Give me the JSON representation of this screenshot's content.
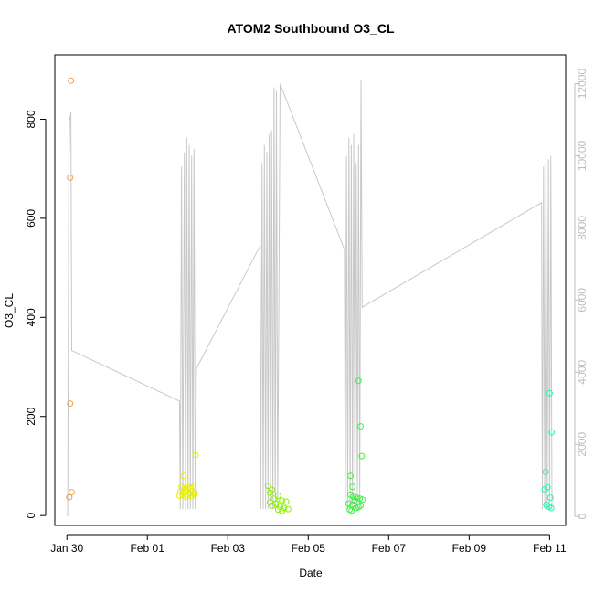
{
  "chart_data": {
    "type": "scatter",
    "title": "ATOM2 Southbound O3_CL",
    "xlabel": "Date",
    "ylabel": "O3_CL",
    "x_unit": "days",
    "x_tick_labels": [
      "Jan 30",
      "Feb 01",
      "Feb 03",
      "Feb 05",
      "Feb 07",
      "Feb 09",
      "Feb 11"
    ],
    "x_tick_values": [
      0,
      2,
      4,
      6,
      8,
      10,
      12
    ],
    "xlim": [
      -0.3,
      12.4
    ],
    "ylim": [
      -20,
      930
    ],
    "y_ticks": [
      0,
      200,
      400,
      600,
      800
    ],
    "y2_ticks": [
      0,
      2000,
      4000,
      6000,
      8000,
      10000,
      12000
    ],
    "y2lim": [
      -250,
      12800
    ],
    "grid": false,
    "legend": "none",
    "colors": {
      "axis": "#000000",
      "line": "#c8c8c8",
      "right_axis": "#bebebe"
    },
    "points": [
      {
        "x": 0.1,
        "y": 878,
        "color": "#f0a050"
      },
      {
        "x": 0.08,
        "y": 682,
        "color": "#f0a050"
      },
      {
        "x": 0.08,
        "y": 226,
        "color": "#f0a050"
      },
      {
        "x": 0.12,
        "y": 47,
        "color": "#f0a050"
      },
      {
        "x": 0.06,
        "y": 37,
        "color": "#f0a050"
      },
      {
        "x": 3.2,
        "y": 122,
        "color": "#e8f000"
      },
      {
        "x": 2.9,
        "y": 80,
        "color": "#e8f000"
      },
      {
        "x": 2.85,
        "y": 58,
        "color": "#e8f000"
      },
      {
        "x": 2.92,
        "y": 55,
        "color": "#e8f000"
      },
      {
        "x": 3.0,
        "y": 57,
        "color": "#e8f000"
      },
      {
        "x": 3.08,
        "y": 54,
        "color": "#e8f000"
      },
      {
        "x": 3.15,
        "y": 58,
        "color": "#e8f000"
      },
      {
        "x": 2.82,
        "y": 48,
        "color": "#e8f000"
      },
      {
        "x": 2.9,
        "y": 46,
        "color": "#e8f000"
      },
      {
        "x": 2.97,
        "y": 50,
        "color": "#e8f000"
      },
      {
        "x": 3.05,
        "y": 45,
        "color": "#e8f000"
      },
      {
        "x": 3.12,
        "y": 49,
        "color": "#e8f000"
      },
      {
        "x": 3.18,
        "y": 46,
        "color": "#e8f000"
      },
      {
        "x": 2.8,
        "y": 40,
        "color": "#e8f000"
      },
      {
        "x": 2.88,
        "y": 42,
        "color": "#e8f000"
      },
      {
        "x": 2.95,
        "y": 38,
        "color": "#e8f000"
      },
      {
        "x": 3.02,
        "y": 41,
        "color": "#e8f000"
      },
      {
        "x": 3.1,
        "y": 39,
        "color": "#e8f000"
      },
      {
        "x": 3.17,
        "y": 43,
        "color": "#e8f000"
      },
      {
        "x": 5.0,
        "y": 60,
        "color": "#88f000"
      },
      {
        "x": 5.1,
        "y": 52,
        "color": "#88f000"
      },
      {
        "x": 5.05,
        "y": 46,
        "color": "#88f000"
      },
      {
        "x": 5.25,
        "y": 40,
        "color": "#88f000"
      },
      {
        "x": 5.15,
        "y": 34,
        "color": "#88f000"
      },
      {
        "x": 5.35,
        "y": 30,
        "color": "#88f000"
      },
      {
        "x": 5.05,
        "y": 27,
        "color": "#88f000"
      },
      {
        "x": 5.2,
        "y": 24,
        "color": "#88f000"
      },
      {
        "x": 5.1,
        "y": 20,
        "color": "#88f000"
      },
      {
        "x": 5.3,
        "y": 18,
        "color": "#88f000"
      },
      {
        "x": 5.4,
        "y": 15,
        "color": "#88f000"
      },
      {
        "x": 5.25,
        "y": 12,
        "color": "#88f000"
      },
      {
        "x": 5.5,
        "y": 13,
        "color": "#88f000"
      },
      {
        "x": 5.35,
        "y": 9,
        "color": "#88f000"
      },
      {
        "x": 5.45,
        "y": 28,
        "color": "#88f000"
      },
      {
        "x": 7.25,
        "y": 272,
        "color": "#40f040"
      },
      {
        "x": 7.3,
        "y": 180,
        "color": "#40f040"
      },
      {
        "x": 7.33,
        "y": 120,
        "color": "#40f040"
      },
      {
        "x": 7.05,
        "y": 80,
        "color": "#40f040"
      },
      {
        "x": 7.1,
        "y": 58,
        "color": "#40f040"
      },
      {
        "x": 7.05,
        "y": 42,
        "color": "#40f040"
      },
      {
        "x": 7.12,
        "y": 38,
        "color": "#40f040"
      },
      {
        "x": 7.2,
        "y": 36,
        "color": "#40f040"
      },
      {
        "x": 7.28,
        "y": 34,
        "color": "#40f040"
      },
      {
        "x": 7.35,
        "y": 32,
        "color": "#40f040"
      },
      {
        "x": 7.15,
        "y": 30,
        "color": "#40f040"
      },
      {
        "x": 7.22,
        "y": 28,
        "color": "#40f040"
      },
      {
        "x": 7.0,
        "y": 24,
        "color": "#40f040"
      },
      {
        "x": 7.1,
        "y": 22,
        "color": "#40f040"
      },
      {
        "x": 7.3,
        "y": 20,
        "color": "#40f040"
      },
      {
        "x": 7.25,
        "y": 17,
        "color": "#40f040"
      },
      {
        "x": 7.18,
        "y": 15,
        "color": "#40f040"
      },
      {
        "x": 7.03,
        "y": 12,
        "color": "#40f040"
      },
      {
        "x": 7.08,
        "y": 10,
        "color": "#40f040"
      },
      {
        "x": 12.0,
        "y": 247,
        "color": "#30f0b0"
      },
      {
        "x": 12.05,
        "y": 168,
        "color": "#30f0b0"
      },
      {
        "x": 11.9,
        "y": 88,
        "color": "#30f0b0"
      },
      {
        "x": 11.95,
        "y": 57,
        "color": "#30f0b0"
      },
      {
        "x": 11.88,
        "y": 53,
        "color": "#30f0b0"
      },
      {
        "x": 12.02,
        "y": 36,
        "color": "#30f0b0"
      },
      {
        "x": 11.92,
        "y": 22,
        "color": "#30f0b0"
      },
      {
        "x": 11.98,
        "y": 18,
        "color": "#30f0b0"
      },
      {
        "x": 12.04,
        "y": 15,
        "color": "#30f0b0"
      }
    ],
    "line_series": [
      [
        0.02,
        0
      ],
      [
        0.05,
        9800
      ],
      [
        0.07,
        11000
      ],
      [
        0.1,
        11200
      ],
      [
        0.12,
        4600
      ],
      [
        2.8,
        3200
      ],
      [
        2.82,
        200
      ],
      [
        2.85,
        9700
      ],
      [
        2.88,
        200
      ],
      [
        2.92,
        10100
      ],
      [
        2.95,
        200
      ],
      [
        2.98,
        10500
      ],
      [
        3.01,
        200
      ],
      [
        3.04,
        10300
      ],
      [
        3.07,
        200
      ],
      [
        3.1,
        10000
      ],
      [
        3.13,
        200
      ],
      [
        3.16,
        10200
      ],
      [
        3.19,
        200
      ],
      [
        3.22,
        4100
      ],
      [
        4.8,
        7500
      ],
      [
        4.82,
        200
      ],
      [
        4.85,
        9800
      ],
      [
        4.88,
        200
      ],
      [
        4.91,
        10300
      ],
      [
        4.94,
        200
      ],
      [
        4.97,
        10100
      ],
      [
        5.0,
        200
      ],
      [
        5.03,
        10600
      ],
      [
        5.06,
        200
      ],
      [
        5.09,
        10700
      ],
      [
        5.12,
        200
      ],
      [
        5.15,
        11900
      ],
      [
        5.18,
        200
      ],
      [
        5.21,
        11800
      ],
      [
        5.24,
        200
      ],
      [
        5.3,
        12000
      ],
      [
        6.9,
        7400
      ],
      [
        6.92,
        200
      ],
      [
        6.95,
        10000
      ],
      [
        6.98,
        200
      ],
      [
        7.01,
        10500
      ],
      [
        7.04,
        200
      ],
      [
        7.07,
        10300
      ],
      [
        7.1,
        200
      ],
      [
        7.13,
        10600
      ],
      [
        7.16,
        200
      ],
      [
        7.19,
        9800
      ],
      [
        7.22,
        200
      ],
      [
        7.25,
        10300
      ],
      [
        7.28,
        200
      ],
      [
        7.31,
        12100
      ],
      [
        7.34,
        5800
      ],
      [
        11.8,
        8700
      ],
      [
        11.82,
        200
      ],
      [
        11.85,
        9700
      ],
      [
        11.88,
        200
      ],
      [
        11.91,
        9800
      ],
      [
        11.94,
        200
      ],
      [
        11.97,
        9900
      ],
      [
        12.0,
        200
      ],
      [
        12.03,
        10000
      ],
      [
        12.06,
        200
      ]
    ]
  }
}
